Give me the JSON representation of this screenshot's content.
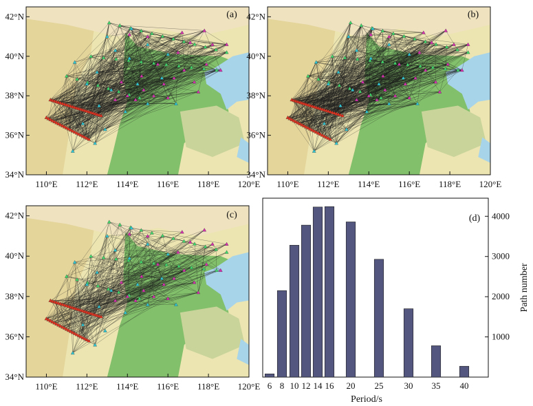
{
  "chart_data": [
    {
      "type": "map",
      "panel_label": "(a)",
      "x_ticks": [
        "110°E",
        "112°E",
        "114°E",
        "116°E",
        "118°E",
        "120°E"
      ],
      "y_ticks": [
        "34°N",
        "36°N",
        "38°N",
        "40°N",
        "42°N"
      ],
      "xlim": [
        109,
        120
      ],
      "ylim": [
        34,
        42.5
      ],
      "path_density": 0.85
    },
    {
      "type": "map",
      "panel_label": "(b)",
      "x_ticks": [
        "110°E",
        "112°E",
        "114°E",
        "116°E",
        "118°E",
        "120°E"
      ],
      "y_ticks": [
        "34°N",
        "36°N",
        "38°N",
        "40°N",
        "42°N"
      ],
      "xlim": [
        109,
        120
      ],
      "ylim": [
        34,
        42.5
      ],
      "path_density": 1.0
    },
    {
      "type": "map",
      "panel_label": "(c)",
      "x_ticks": [
        "110°E",
        "112°E",
        "114°E",
        "116°E",
        "118°E",
        "120°E"
      ],
      "y_ticks": [
        "34°N",
        "36°N",
        "38°N",
        "40°N",
        "42°N"
      ],
      "xlim": [
        109,
        120
      ],
      "ylim": [
        34,
        42.5
      ],
      "path_density": 0.5
    },
    {
      "type": "bar",
      "panel_label": "(d)",
      "categories": [
        "6",
        "8",
        "10",
        "12",
        "14",
        "16",
        "20",
        "25",
        "30",
        "35",
        "40"
      ],
      "values": [
        80,
        2150,
        3280,
        3780,
        4230,
        4240,
        3860,
        2930,
        1700,
        780,
        270
      ],
      "bar_color": "#53577f",
      "xlabel": "Period/s",
      "ylabel": "Path number",
      "y_ticks": [
        1000,
        2000,
        3000,
        4000
      ],
      "ylim": [
        0,
        4450
      ]
    }
  ],
  "colors": {
    "land": "#ece5b1",
    "plain": "#82c06b",
    "sea": "#a8d4ea",
    "station_red": "#e0301e",
    "station_cyan": "#2fc7d6",
    "station_magenta": "#d62fae",
    "station_green": "#3fd86b"
  }
}
